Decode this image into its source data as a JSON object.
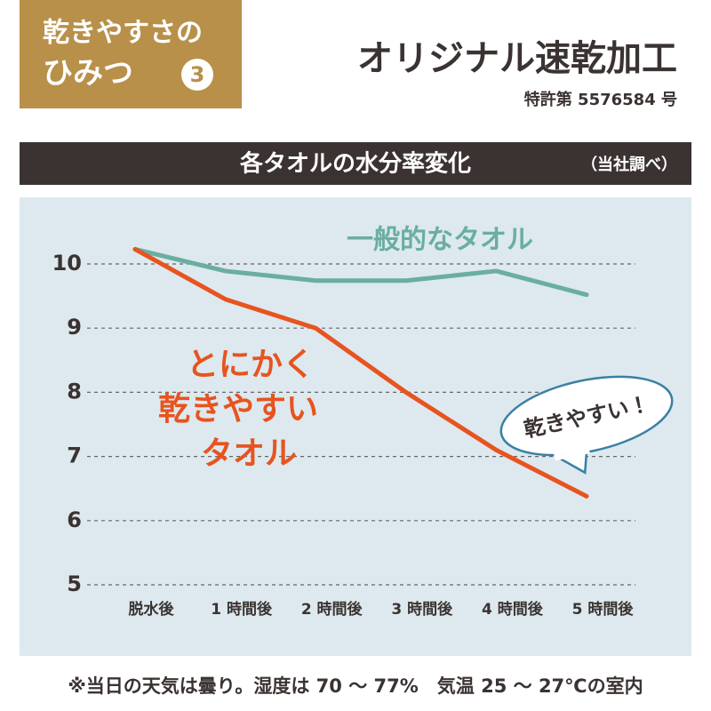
{
  "header": {
    "badge_line1": "乾きやすさの",
    "badge_line2": "ひみつ",
    "badge_number": "3",
    "title": "オリジナル速乾加工",
    "patent": "特許第 5576584 号"
  },
  "chart_data": {
    "type": "line",
    "title": "各タオルの水分率変化",
    "source": "（当社調べ）",
    "categories": [
      "脱水後",
      "1 時間後",
      "2 時間後",
      "3 時間後",
      "4 時間後",
      "5 時間後"
    ],
    "series": [
      {
        "name": "一般的なタオル",
        "color": "#6aaea0",
        "values": [
          10.23,
          9.89,
          9.74,
          9.74,
          9.89,
          9.52
        ]
      },
      {
        "name": "とにかく乾きやすいタオル",
        "color": "#e8531f",
        "values": [
          10.23,
          9.45,
          9.0,
          8.0,
          7.1,
          6.38
        ]
      }
    ],
    "ylim": [
      5,
      10
    ],
    "yticks": [
      5,
      6,
      7,
      8,
      9,
      10
    ],
    "grid": true,
    "bubble": "乾きやすい！"
  },
  "footnote": "※当日の天気は曇り。湿度は 70 〜 77%　気温 25 〜 27℃の室内"
}
